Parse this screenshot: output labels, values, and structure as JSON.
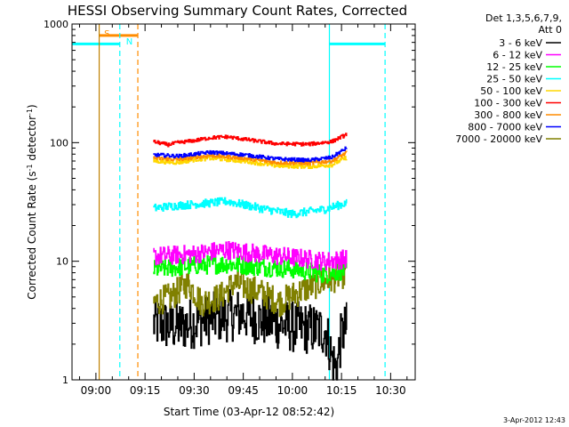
{
  "chart_data": {
    "type": "line",
    "title": "HESSI Observing Summary Count Rates, Corrected",
    "xlabel": "Start Time (03-Apr-12 08:52:42)",
    "ylabel": "Corrected Count Rate (s",
    "ylabel_sup1": "-1",
    "ylabel_mid": " detector",
    "ylabel_sup2": "-1",
    "ylabel_end": ")",
    "timestamp": "3-Apr-2012 12:43",
    "legend_header": [
      "Det 1,3,5,6,7,9,",
      "Att 0"
    ],
    "x_ticks": [
      {
        "t": 540,
        "label": "09:00"
      },
      {
        "t": 555,
        "label": "09:15"
      },
      {
        "t": 570,
        "label": "09:30"
      },
      {
        "t": 585,
        "label": "09:45"
      },
      {
        "t": 600,
        "label": "10:00"
      },
      {
        "t": 615,
        "label": "10:15"
      },
      {
        "t": 630,
        "label": "10:30"
      }
    ],
    "xlim_minutes": [
      532.7,
      637.5
    ],
    "ylim": [
      1,
      1000
    ],
    "y_scale": "log",
    "y_ticks": [
      {
        "v": 1,
        "label": "1"
      },
      {
        "v": 10,
        "label": "10"
      },
      {
        "v": 100,
        "label": "100"
      },
      {
        "v": 1000,
        "label": "1000"
      }
    ],
    "data_window": [
      557.5,
      616.5
    ],
    "series": [
      {
        "name": "3 - 6 keV",
        "color": "#000000",
        "base": [
          [
            557.5,
            3.0
          ],
          [
            565,
            2.8
          ],
          [
            575,
            3.3
          ],
          [
            585,
            3.6
          ],
          [
            590,
            3.2
          ],
          [
            600,
            2.8
          ],
          [
            610,
            2.6
          ],
          [
            612,
            1.5
          ],
          [
            613.5,
            1.2
          ],
          [
            615,
            2.4
          ],
          [
            616.5,
            2.8
          ]
        ],
        "noise": 0.22
      },
      {
        "name": "6 - 12 keV",
        "color": "#ff00ff",
        "base": [
          [
            557.5,
            11
          ],
          [
            570,
            11.5
          ],
          [
            580,
            12.5
          ],
          [
            590,
            11.5
          ],
          [
            600,
            10.8
          ],
          [
            610,
            10
          ],
          [
            616.5,
            10.5
          ]
        ],
        "noise": 0.08
      },
      {
        "name": "12 - 25 keV",
        "color": "#00ff00",
        "base": [
          [
            557.5,
            8.5
          ],
          [
            570,
            9.2
          ],
          [
            580,
            9.5
          ],
          [
            590,
            9
          ],
          [
            600,
            8.6
          ],
          [
            610,
            7.8
          ],
          [
            616.5,
            8.5
          ]
        ],
        "noise": 0.08
      },
      {
        "name": "25 - 50 keV",
        "color": "#00ffff",
        "base": [
          [
            557.5,
            28
          ],
          [
            565,
            29.5
          ],
          [
            575,
            31
          ],
          [
            580,
            32
          ],
          [
            590,
            28
          ],
          [
            600,
            25
          ],
          [
            610,
            27.5
          ],
          [
            616.5,
            31
          ]
        ],
        "noise": 0.035
      },
      {
        "name": "50 - 100 keV",
        "color": "#ffd700",
        "base": [
          [
            557.5,
            70
          ],
          [
            565,
            68
          ],
          [
            570,
            72
          ],
          [
            575,
            74
          ],
          [
            585,
            70
          ],
          [
            595,
            64
          ],
          [
            605,
            63
          ],
          [
            612,
            65
          ],
          [
            616.5,
            75
          ]
        ],
        "noise": 0.018
      },
      {
        "name": "100 - 300 keV",
        "color": "#ff0000",
        "base": [
          [
            557.5,
            102
          ],
          [
            562,
            96
          ],
          [
            565,
            100
          ],
          [
            570,
            104
          ],
          [
            575,
            110
          ],
          [
            580,
            112
          ],
          [
            585,
            107
          ],
          [
            595,
            98
          ],
          [
            605,
            97
          ],
          [
            612,
            102
          ],
          [
            616.5,
            117
          ]
        ],
        "noise": 0.015
      },
      {
        "name": "300 - 800 keV",
        "color": "#ff8c00",
        "base": [
          [
            557.5,
            74
          ],
          [
            565,
            72
          ],
          [
            575,
            78
          ],
          [
            585,
            74
          ],
          [
            595,
            68
          ],
          [
            605,
            67
          ],
          [
            612,
            70
          ],
          [
            616.5,
            82
          ]
        ],
        "noise": 0.015
      },
      {
        "name": "800 - 7000 keV",
        "color": "#0000ff",
        "base": [
          [
            557.5,
            79
          ],
          [
            565,
            77
          ],
          [
            575,
            83
          ],
          [
            585,
            79
          ],
          [
            595,
            73
          ],
          [
            605,
            71
          ],
          [
            612,
            75
          ],
          [
            616.5,
            90
          ]
        ],
        "noise": 0.015
      },
      {
        "name": "7000 - 20000 keV",
        "color": "#808000",
        "base": [
          [
            557.5,
            4.5
          ],
          [
            563,
            5.0
          ],
          [
            568,
            6.5
          ],
          [
            572,
            4.5
          ],
          [
            578,
            5.0
          ],
          [
            582,
            6.5
          ],
          [
            590,
            5.5
          ],
          [
            596,
            4.5
          ],
          [
            602,
            5.5
          ],
          [
            608,
            6.5
          ],
          [
            612,
            7.0
          ],
          [
            616.5,
            8.0
          ]
        ],
        "noise": 0.12
      }
    ],
    "event_markers": [
      {
        "name": "saa-start",
        "t": 541.0,
        "color": "#c08000",
        "style": "solid"
      },
      {
        "name": "night-end",
        "t": 547.3,
        "color": "#00ffff",
        "style": "dashed"
      },
      {
        "name": "saa-end",
        "t": 552.8,
        "color": "#ff8c00",
        "style": "dashed"
      },
      {
        "name": "night-start",
        "t": 611.3,
        "color": "#00ffff",
        "style": "solid"
      },
      {
        "name": "night-end-2",
        "t": 628.3,
        "color": "#00ffff",
        "style": "dashed"
      }
    ],
    "flag_bars": [
      {
        "name": "night-bar-1",
        "from": 532.7,
        "to": 547.3,
        "v": 680,
        "color": "#00ffff"
      },
      {
        "name": "saa-bar",
        "from": 541.0,
        "to": 552.8,
        "v": 800,
        "color": "#ff8c00"
      },
      {
        "name": "night-bar-2",
        "from": 611.3,
        "to": 628.3,
        "v": 680,
        "color": "#00ffff"
      }
    ],
    "flag_labels": [
      {
        "name": "saa-label",
        "text": "S",
        "t": 542.5,
        "v": 840,
        "color": "#ff8c00"
      },
      {
        "name": "night-label",
        "text": "N",
        "t": 549.2,
        "v": 720,
        "color": "#00ffff"
      }
    ]
  }
}
